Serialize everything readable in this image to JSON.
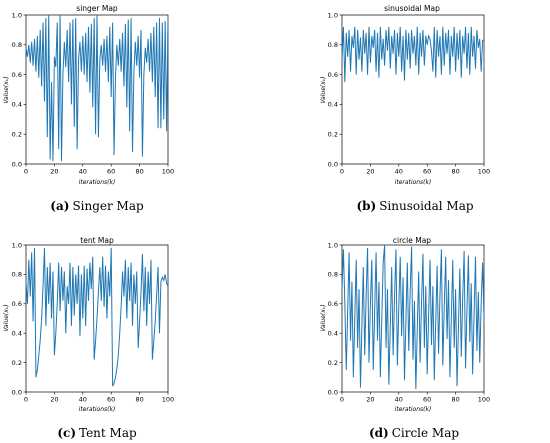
{
  "figure": {
    "panels": [
      {
        "tag": "(a)",
        "caption": "Singer Map",
        "color": "#1f77b4"
      },
      {
        "tag": "(b)",
        "caption": "Sinusoidal Map",
        "color": "#1f77b4"
      },
      {
        "tag": "(c)",
        "caption": "Tent Map",
        "color": "#1f77b4"
      },
      {
        "tag": "(d)",
        "caption": "Circle Map",
        "color": "#1f77b4"
      }
    ]
  },
  "chart_data": [
    {
      "type": "line",
      "title": "singer Map",
      "xlabel": "iterations(k)",
      "ylabel": "Value(xₖ)",
      "xlim": [
        0,
        100
      ],
      "ylim": [
        0,
        1.0
      ],
      "xticks": [
        0,
        20,
        40,
        60,
        80,
        100
      ],
      "yticks": [
        0.0,
        0.2,
        0.4,
        0.6,
        0.8,
        1.0
      ],
      "grid": false,
      "series": [
        {
          "values": [
            0.78,
            0.72,
            0.8,
            0.68,
            0.82,
            0.66,
            0.84,
            0.62,
            0.86,
            0.58,
            0.9,
            0.52,
            0.95,
            0.42,
            0.98,
            0.18,
            1.0,
            0.03,
            0.55,
            0.02,
            0.72,
            0.65,
            0.95,
            0.1,
            1.0,
            0.02,
            0.6,
            0.82,
            0.65,
            0.9,
            0.55,
            0.95,
            0.4,
            0.97,
            0.25,
            0.98,
            0.1,
            0.7,
            0.82,
            0.62,
            0.86,
            0.6,
            0.88,
            0.55,
            0.92,
            0.48,
            0.94,
            0.38,
            0.98,
            0.2,
            1.0,
            0.18,
            0.7,
            0.8,
            0.66,
            0.84,
            0.62,
            0.86,
            0.55,
            0.92,
            0.45,
            0.95,
            0.06,
            0.58,
            0.8,
            0.66,
            0.84,
            0.62,
            0.88,
            0.52,
            0.94,
            0.38,
            0.97,
            0.22,
            0.98,
            0.08,
            0.62,
            0.82,
            0.66,
            0.86,
            0.58,
            0.9,
            0.05,
            0.6,
            0.78,
            0.68,
            0.84,
            0.62,
            0.88,
            0.55,
            0.92,
            0.45,
            0.95,
            0.24,
            0.98,
            0.24,
            0.95,
            0.3,
            0.96,
            0.22,
            0.98
          ]
        }
      ]
    },
    {
      "type": "line",
      "title": "sinusoidal Map",
      "xlabel": "iterations(k)",
      "ylabel": "Value(xₖ)",
      "xlim": [
        0,
        100
      ],
      "ylim": [
        0,
        1.0
      ],
      "xticks": [
        0,
        20,
        40,
        60,
        80,
        100
      ],
      "yticks": [
        0.0,
        0.2,
        0.4,
        0.6,
        0.8,
        1.0
      ],
      "grid": false,
      "series": [
        {
          "values": [
            0.7,
            0.92,
            0.55,
            0.88,
            0.72,
            0.9,
            0.62,
            0.86,
            0.78,
            0.92,
            0.6,
            0.9,
            0.7,
            0.85,
            0.62,
            0.9,
            0.74,
            0.88,
            0.6,
            0.92,
            0.68,
            0.86,
            0.78,
            0.9,
            0.62,
            0.88,
            0.58,
            0.92,
            0.7,
            0.84,
            0.66,
            0.9,
            0.76,
            0.92,
            0.64,
            0.86,
            0.74,
            0.9,
            0.6,
            0.88,
            0.72,
            0.92,
            0.62,
            0.86,
            0.56,
            0.9,
            0.7,
            0.88,
            0.64,
            0.9,
            0.74,
            0.86,
            0.66,
            0.92,
            0.6,
            0.88,
            0.72,
            0.9,
            0.66,
            0.86,
            0.8,
            0.86,
            0.84,
            0.76,
            0.62,
            0.92,
            0.58,
            0.9,
            0.72,
            0.86,
            0.6,
            0.92,
            0.66,
            0.88,
            0.74,
            0.9,
            0.6,
            0.86,
            0.72,
            0.92,
            0.62,
            0.88,
            0.7,
            0.9,
            0.58,
            0.86,
            0.74,
            0.92,
            0.64,
            0.88,
            0.6,
            0.92,
            0.72,
            0.86,
            0.64,
            0.9,
            0.78,
            0.84,
            0.62,
            0.83,
            0.83
          ]
        }
      ]
    },
    {
      "type": "line",
      "title": "tent Map",
      "xlabel": "iterations(k)",
      "ylabel": "Value(xₖ)",
      "xlim": [
        0,
        100
      ],
      "ylim": [
        0,
        1.0
      ],
      "xticks": [
        0,
        20,
        40,
        60,
        80,
        100
      ],
      "yticks": [
        0.0,
        0.2,
        0.4,
        0.6,
        0.8,
        1.0
      ],
      "grid": false,
      "series": [
        {
          "values": [
            0.75,
            0.6,
            0.9,
            0.65,
            0.95,
            0.48,
            0.98,
            0.1,
            0.15,
            0.25,
            0.35,
            0.5,
            0.72,
            0.98,
            0.45,
            0.85,
            0.6,
            0.88,
            0.5,
            0.82,
            0.25,
            0.4,
            0.6,
            0.88,
            0.55,
            0.85,
            0.62,
            0.82,
            0.4,
            0.72,
            0.6,
            0.88,
            0.45,
            0.85,
            0.52,
            0.8,
            0.6,
            0.86,
            0.38,
            0.8,
            0.5,
            0.86,
            0.45,
            0.84,
            0.62,
            0.88,
            0.7,
            0.92,
            0.22,
            0.35,
            0.5,
            0.68,
            0.85,
            0.62,
            0.92,
            0.58,
            0.86,
            0.5,
            0.82,
            0.65,
            0.98,
            0.04,
            0.06,
            0.1,
            0.16,
            0.25,
            0.4,
            0.58,
            0.82,
            0.65,
            0.9,
            0.5,
            0.85,
            0.62,
            0.88,
            0.45,
            0.8,
            0.6,
            0.82,
            0.3,
            0.48,
            0.68,
            0.94,
            0.55,
            0.85,
            0.45,
            0.82,
            0.6,
            0.9,
            0.22,
            0.35,
            0.48,
            0.66,
            0.85,
            0.4,
            0.75,
            0.78,
            0.76,
            0.8,
            0.74,
            0.72
          ]
        }
      ]
    },
    {
      "type": "line",
      "title": "circle Map",
      "xlabel": "iterations(k)",
      "ylabel": "Value(xₖ)",
      "xlim": [
        0,
        100
      ],
      "ylim": [
        0,
        1.0
      ],
      "xticks": [
        0,
        20,
        40,
        60,
        80,
        100
      ],
      "yticks": [
        0.0,
        0.2,
        0.4,
        0.6,
        0.8,
        1.0
      ],
      "grid": false,
      "series": [
        {
          "values": [
            0.7,
            0.97,
            0.6,
            0.15,
            0.55,
            0.95,
            0.35,
            0.75,
            0.1,
            0.5,
            0.9,
            0.3,
            0.7,
            0.03,
            0.45,
            0.85,
            0.25,
            0.65,
            0.98,
            0.2,
            0.6,
            0.9,
            0.15,
            0.55,
            0.95,
            0.35,
            0.75,
            0.1,
            0.5,
            0.88,
            1.0,
            0.3,
            0.7,
            0.05,
            0.45,
            0.85,
            0.25,
            0.65,
            0.97,
            0.18,
            0.58,
            0.92,
            0.38,
            0.78,
            0.08,
            0.48,
            0.88,
            0.28,
            0.68,
            0.99,
            0.22,
            0.62,
            0.02,
            0.42,
            0.82,
            0.2,
            0.6,
            0.94,
            0.3,
            0.72,
            0.12,
            0.52,
            0.9,
            0.32,
            0.72,
            0.08,
            0.48,
            0.86,
            0.26,
            0.66,
            0.97,
            0.18,
            0.58,
            0.92,
            0.36,
            0.76,
            0.1,
            0.5,
            0.9,
            0.3,
            0.7,
            0.04,
            0.44,
            0.84,
            0.24,
            0.64,
            0.96,
            0.16,
            0.56,
            0.93,
            0.34,
            0.74,
            0.12,
            0.52,
            0.92,
            0.28,
            0.68,
            0.2,
            0.6,
            0.88,
            0.5
          ]
        }
      ]
    }
  ]
}
